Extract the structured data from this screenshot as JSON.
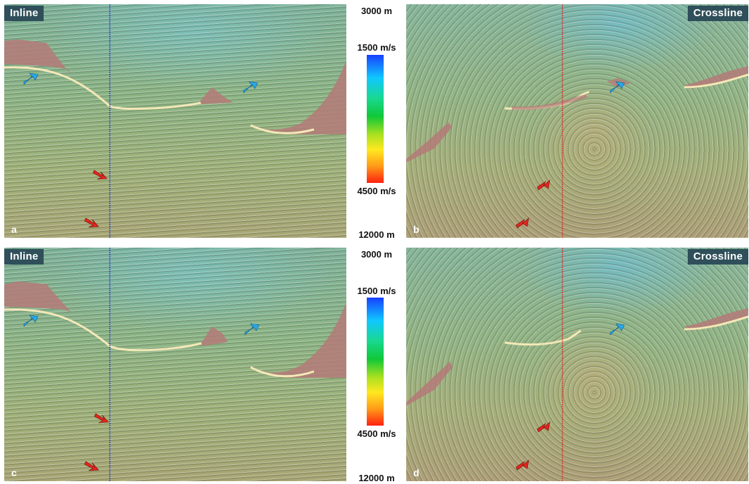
{
  "panels": [
    {
      "section_label": "Inline",
      "panel_letter": "a"
    },
    {
      "section_label": "Crossline",
      "panel_letter": "b"
    },
    {
      "section_label": "Inline",
      "panel_letter": "c"
    },
    {
      "section_label": "Crossline",
      "panel_letter": "d"
    }
  ],
  "scale_top": {
    "offset_label": "3000 m",
    "velocity_max_label": "1500 m/s",
    "velocity_min_label": "4500 m/s",
    "offset_bottom_label": "12000 m"
  },
  "scale_bottom": {
    "offset_label": "3000 m",
    "velocity_max_label": "1500 m/s",
    "velocity_min_label": "4500 m/s",
    "offset_bottom_label": "12000 m"
  },
  "colors": {
    "salt_body": "#b47a78",
    "blue_arrow": "#29a9e6",
    "red_arrow": "#e0261e",
    "inline_marker": "#1f2fd0",
    "crossline_marker": "#e02020",
    "label_bg": "#2f4f5a"
  },
  "icons": {
    "blue_arrow": "arrow-icon",
    "red_arrow": "arrow-icon"
  }
}
